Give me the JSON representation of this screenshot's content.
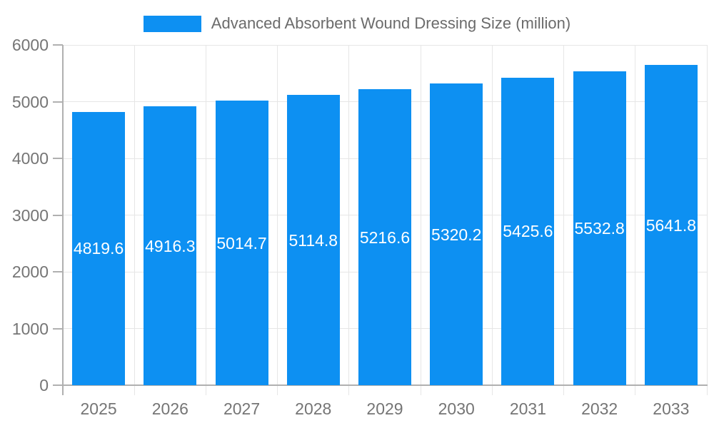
{
  "chart_data": {
    "type": "bar",
    "title": "",
    "legend": "Advanced Absorbent Wound Dressing Size (million)",
    "legend_position": "top",
    "categories": [
      "2025",
      "2026",
      "2027",
      "2028",
      "2029",
      "2030",
      "2031",
      "2032",
      "2033"
    ],
    "values": [
      4819.6,
      4916.3,
      5014.7,
      5114.8,
      5216.6,
      5320.2,
      5425.6,
      5532.8,
      5641.8
    ],
    "xlabel": "",
    "ylabel": "",
    "ylim": [
      0,
      6000
    ],
    "yticks": [
      0,
      1000,
      2000,
      3000,
      4000,
      5000,
      6000
    ],
    "grid": true,
    "value_labels": "inside-center",
    "bar_color": "#0D90F2",
    "value_label_color": "#ffffff",
    "colors": {
      "grid": "#e6e6e6",
      "axis": "#b0b0b0",
      "tick_text": "#757575",
      "legend_text": "#6b6b6b"
    }
  }
}
